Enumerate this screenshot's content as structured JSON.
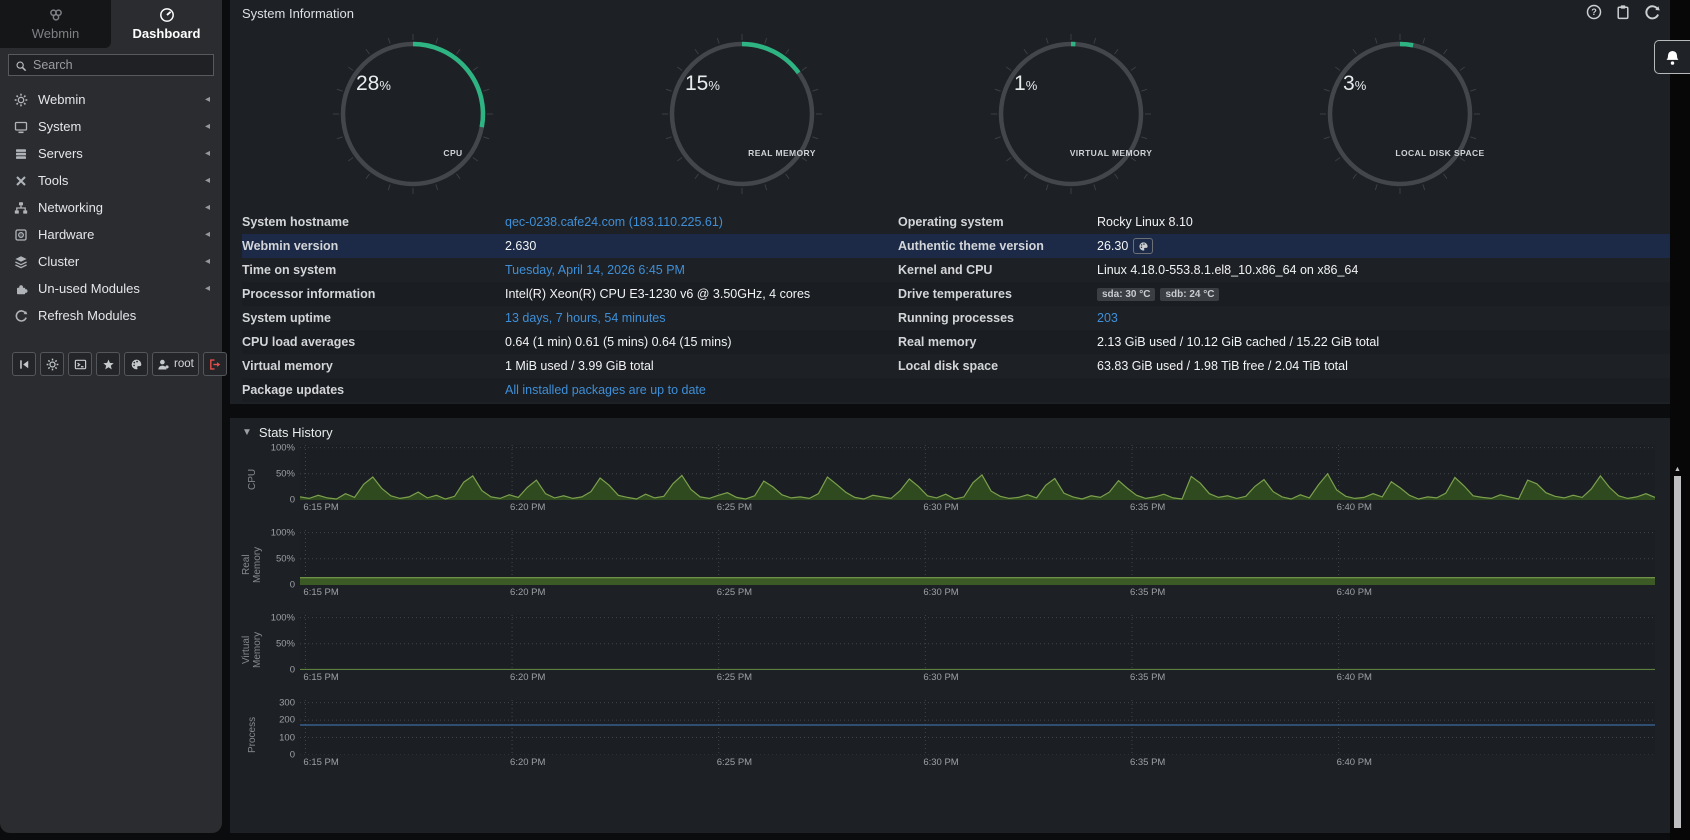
{
  "sidebar": {
    "tabs": [
      {
        "label": "Webmin"
      },
      {
        "label": "Dashboard"
      }
    ],
    "search_placeholder": "Search",
    "items": [
      {
        "label": "Webmin",
        "icon": "gear-icon",
        "arrow": true
      },
      {
        "label": "System",
        "icon": "monitor-icon",
        "arrow": true
      },
      {
        "label": "Servers",
        "icon": "servers-icon",
        "arrow": true
      },
      {
        "label": "Tools",
        "icon": "tools-icon",
        "arrow": true
      },
      {
        "label": "Networking",
        "icon": "network-icon",
        "arrow": true
      },
      {
        "label": "Hardware",
        "icon": "hdd-icon",
        "arrow": true
      },
      {
        "label": "Cluster",
        "icon": "layers-icon",
        "arrow": true
      },
      {
        "label": "Un-used Modules",
        "icon": "puzzle-icon",
        "arrow": true
      },
      {
        "label": "Refresh Modules",
        "icon": "refresh-icon",
        "arrow": false
      }
    ],
    "footer_buttons": [
      {
        "icon": "collapse-icon"
      },
      {
        "icon": "gear-icon"
      },
      {
        "icon": "terminal-icon"
      },
      {
        "icon": "star-icon"
      },
      {
        "icon": "palette-icon"
      },
      {
        "icon": "user-icon",
        "label": "root"
      },
      {
        "icon": "logout-icon",
        "danger": true
      }
    ]
  },
  "header": {
    "title": "System Information",
    "icons": [
      "help-icon",
      "clipboard-icon",
      "reload-icon"
    ]
  },
  "gauges": [
    {
      "percent": 28,
      "display": "28",
      "unit": "%",
      "label": "CPU"
    },
    {
      "percent": 15,
      "display": "15",
      "unit": "%",
      "label": "REAL MEMORY"
    },
    {
      "percent": 1,
      "display": "1",
      "unit": "%",
      "label": "VIRTUAL MEMORY"
    },
    {
      "percent": 3,
      "display": "3",
      "unit": "%",
      "label": "LOCAL DISK SPACE"
    }
  ],
  "gauge_colors": {
    "ring": "#43474c",
    "arc": "#2db482",
    "tick": "#3b3e42",
    "value_text": "#e9ebed",
    "label_text": "#d0d3d6"
  },
  "info_table": {
    "rows": [
      {
        "left": {
          "label": "System hostname",
          "value": "qec-0238.cafe24.com (183.110.225.61)",
          "link": true
        },
        "right": {
          "label": "Operating system",
          "value": "Rocky Linux 8.10"
        }
      },
      {
        "highlight": true,
        "left": {
          "label": "Webmin version",
          "value": "2.630"
        },
        "right": {
          "label": "Authentic theme version",
          "value": "26.30",
          "theme_badge": true
        }
      },
      {
        "left": {
          "label": "Time on system",
          "value": "Tuesday, April 14, 2026 6:45 PM",
          "link": true
        },
        "right": {
          "label": "Kernel and CPU",
          "value": "Linux 4.18.0-553.8.1.el8_10.x86_64 on x86_64"
        }
      },
      {
        "left": {
          "label": "Processor information",
          "value": "Intel(R) Xeon(R) CPU E3-1230 v6 @ 3.50GHz, 4 cores"
        },
        "right": {
          "label": "Drive temperatures",
          "badges": [
            "sda: 30 °C",
            "sdb: 24 °C"
          ]
        }
      },
      {
        "left": {
          "label": "System uptime",
          "value": "13 days, 7 hours, 54 minutes",
          "link": true
        },
        "right": {
          "label": "Running processes",
          "value": "203",
          "link": true
        }
      },
      {
        "left": {
          "label": "CPU load averages",
          "value": "0.64 (1 min) 0.61 (5 mins) 0.64 (15 mins)"
        },
        "right": {
          "label": "Real memory",
          "value": "2.13 GiB used / 10.12 GiB cached / 15.22 GiB total"
        }
      },
      {
        "left": {
          "label": "Virtual memory",
          "value": "1 MiB used / 3.99 GiB total"
        },
        "right": {
          "label": "Local disk space",
          "value": "63.83 GiB used / 1.98 TiB free / 2.04 TiB total"
        }
      },
      {
        "left": {
          "label": "Package updates",
          "value": "All installed packages are up to date",
          "link": true
        },
        "right": {
          "label": "",
          "value": ""
        }
      }
    ],
    "link_color": "#3f8fd8",
    "highlight_color": "#1c2a47"
  },
  "stats": {
    "title": "Stats History"
  },
  "chart_data": [
    {
      "type": "area",
      "name": "CPU",
      "ylabel": "CPU",
      "yticks": [
        100,
        50,
        0
      ],
      "ytick_labels": [
        "100%",
        "50%",
        "0"
      ],
      "ylim": [
        0,
        105
      ],
      "x_labels": [
        "6:15 PM",
        "6:20 PM",
        "6:25 PM",
        "6:30 PM",
        "6:35 PM",
        "6:40 PM"
      ],
      "grid": true,
      "stroke": "#7ba04d",
      "fill": "#2e4a1e",
      "values": [
        6,
        3,
        9,
        4,
        2,
        12,
        5,
        30,
        44,
        22,
        8,
        3,
        6,
        15,
        4,
        9,
        2,
        7,
        34,
        46,
        18,
        6,
        3,
        10,
        5,
        24,
        38,
        12,
        4,
        8,
        3,
        6,
        16,
        42,
        28,
        9,
        5,
        2,
        11,
        4,
        7,
        31,
        47,
        20,
        6,
        3,
        9,
        14,
        5,
        2,
        8,
        36,
        25,
        10,
        4,
        6,
        3,
        12,
        44,
        30,
        15,
        5,
        2,
        9,
        6,
        3,
        18,
        40,
        26,
        8,
        4,
        11,
        2,
        6,
        33,
        48,
        17,
        7,
        3,
        5,
        10,
        4,
        28,
        41,
        13,
        6,
        2,
        8,
        5,
        15,
        37,
        22,
        9,
        3,
        6,
        11,
        4,
        2,
        45,
        32,
        12,
        5,
        8,
        3,
        7,
        26,
        39,
        16,
        6,
        2,
        10,
        4,
        29,
        50,
        19,
        7,
        3,
        5,
        12,
        6,
        35,
        23,
        9,
        2,
        6,
        4,
        13,
        43,
        27,
        8,
        5,
        3,
        10,
        6,
        2,
        38,
        31,
        14,
        7,
        4,
        9,
        5,
        21,
        46,
        24,
        8,
        3,
        6,
        12,
        5
      ]
    },
    {
      "type": "area",
      "name": "Real Memory",
      "ylabel": "Real Memory",
      "yticks": [
        100,
        50,
        0
      ],
      "ytick_labels": [
        "100%",
        "50%",
        "0"
      ],
      "ylim": [
        0,
        105
      ],
      "x_labels": [
        "6:15 PM",
        "6:20 PM",
        "6:25 PM",
        "6:30 PM",
        "6:35 PM",
        "6:40 PM"
      ],
      "grid": true,
      "stroke": "#7ba04d",
      "fill": "#3c5a26",
      "values": [
        14
      ]
    },
    {
      "type": "line",
      "name": "Virtual Memory",
      "ylabel": "Virtual Memory",
      "yticks": [
        100,
        50,
        0
      ],
      "ytick_labels": [
        "100%",
        "50%",
        "0"
      ],
      "ylim": [
        0,
        105
      ],
      "x_labels": [
        "6:15 PM",
        "6:20 PM",
        "6:25 PM",
        "6:30 PM",
        "6:35 PM",
        "6:40 PM"
      ],
      "grid": true,
      "stroke": "#5d7f3d",
      "fill": "none",
      "values": [
        1
      ]
    },
    {
      "type": "line",
      "name": "Process",
      "ylabel": "Process",
      "yticks": [
        300,
        200,
        100,
        0
      ],
      "ytick_labels": [
        "300",
        "200",
        "100",
        "0"
      ],
      "ylim": [
        0,
        315
      ],
      "x_labels": [
        "6:15 PM",
        "6:20 PM",
        "6:25 PM",
        "6:30 PM",
        "6:35 PM",
        "6:40 PM"
      ],
      "grid": true,
      "stroke": "#3d6ca3",
      "fill": "none",
      "values": [
        172
      ]
    }
  ]
}
